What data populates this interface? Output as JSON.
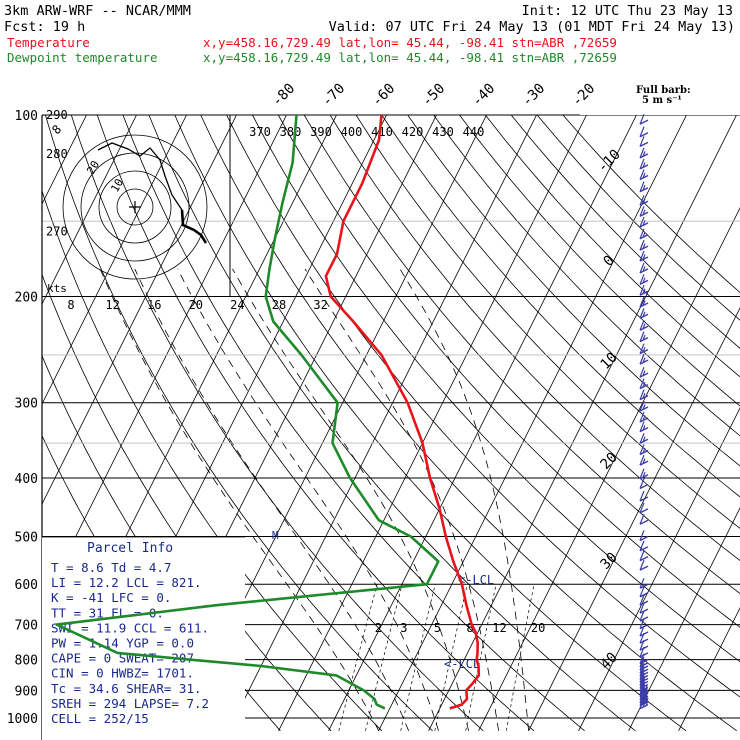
{
  "header": {
    "line1_left": "3km ARW-WRF -- NCAR/MMM",
    "line1_right": "Init: 12 UTC Thu 23 May 13",
    "line2_left": "Fcst:     19 h",
    "line2_right": "Valid: 07 UTC Fri 24 May 13 (01 MDT Fri 24 May 13)",
    "temp_label": "Temperature",
    "temp_info": "x,y=458.16,729.49   lat,lon= 45.44, -98.41   stn=ABR ,72659",
    "dew_label": "Dewpoint temperature",
    "dew_info": "x,y=458.16,729.49   lat,lon= 45.44, -98.41   stn=ABR ,72659",
    "barb_title": "Full barb:",
    "barb_unit": "5 m s⁻¹"
  },
  "colors": {
    "temperature": "#e8141a",
    "dewpoint": "#1f8a2a",
    "barbs": "#3c3ca8",
    "grid": "#000000"
  },
  "chart_data": {
    "type": "line",
    "y_axis": {
      "label": "",
      "scale": "log",
      "ticks": [
        100,
        200,
        300,
        400,
        500,
        600,
        700,
        800,
        900,
        1000
      ],
      "ylim": [
        1050,
        100
      ]
    },
    "isotherm_labels": [
      "-80",
      "-70",
      "-60",
      "-50",
      "-40",
      "-30",
      "-20",
      "-10",
      "0",
      "10",
      "20",
      "30",
      "40"
    ],
    "theta_e_labels": [
      "370",
      "380",
      "390",
      "400",
      "410",
      "420",
      "430",
      "440"
    ],
    "dry_adiabat_labels": [
      "290",
      "280",
      "270"
    ],
    "mixing_ratio_labels": [
      "2",
      "3",
      "5",
      "8",
      "12",
      "20"
    ],
    "hodograph": {
      "unit_label": "kts",
      "speed_labels": [
        "8",
        "12",
        "16",
        "20",
        "24",
        "28",
        "32"
      ],
      "ring_labels": [
        "8",
        "20",
        "10"
      ]
    },
    "series": [
      {
        "name": "Temperature",
        "points": [
          [
            964,
            12.0
          ],
          [
            950,
            14.0
          ],
          [
            930,
            14.5
          ],
          [
            900,
            13.5
          ],
          [
            880,
            14.0
          ],
          [
            850,
            14.5
          ],
          [
            820,
            13.5
          ],
          [
            800,
            12.5
          ],
          [
            780,
            12.0
          ],
          [
            750,
            11.0
          ],
          [
            720,
            9.5
          ],
          [
            700,
            8.0
          ],
          [
            650,
            5.0
          ],
          [
            600,
            2.0
          ],
          [
            550,
            -2.0
          ],
          [
            500,
            -6.0
          ],
          [
            450,
            -10.0
          ],
          [
            400,
            -15.0
          ],
          [
            350,
            -20.0
          ],
          [
            300,
            -27.0
          ],
          [
            250,
            -37.0
          ],
          [
            220,
            -46.0
          ],
          [
            200,
            -53.0
          ],
          [
            185,
            -56.0
          ],
          [
            170,
            -56.0
          ],
          [
            150,
            -58.0
          ],
          [
            130,
            -58.0
          ],
          [
            110,
            -59.0
          ],
          [
            100,
            -61.0
          ]
        ]
      },
      {
        "name": "Dewpoint temperature",
        "points": [
          [
            964,
            -1.0
          ],
          [
            950,
            -3.0
          ],
          [
            930,
            -4.0
          ],
          [
            900,
            -7.0
          ],
          [
            850,
            -14.0
          ],
          [
            820,
            -30.0
          ],
          [
            800,
            -45.0
          ],
          [
            780,
            -60.0
          ],
          [
            700,
            -75.0
          ],
          [
            650,
            -45.0
          ],
          [
            600,
            -5.0
          ],
          [
            550,
            -5.0
          ],
          [
            500,
            -13.0
          ],
          [
            470,
            -21.0
          ],
          [
            400,
            -31.0
          ],
          [
            350,
            -38.0
          ],
          [
            300,
            -41.0
          ],
          [
            250,
            -53.0
          ],
          [
            220,
            -62.0
          ],
          [
            200,
            -66.0
          ],
          [
            180,
            -68.0
          ],
          [
            160,
            -70.0
          ],
          [
            140,
            -72.0
          ],
          [
            120,
            -74.0
          ],
          [
            100,
            -78.0
          ]
        ]
      }
    ],
    "annotations": {
      "lcl_upper": "<-LCL",
      "lcl_lower": "<-LCL",
      "mark": "M"
    }
  },
  "parcel": {
    "title": "Parcel Info",
    "rows": [
      "T  =    8.6 Td =   4.7",
      "LI =   12.2 LCL =  821.",
      "K  =    -41 LFC =    0.",
      "TT =     31 EL  =    0.",
      "SWI =  11.9 CCL =  611.",
      "PW =   1.14 YGP =   0.0",
      "CAPE =    0 SWEAT=  207",
      "CIN =     0 HWBZ= 1701.",
      "Tc =   34.6 SHEAR=  31.",
      "SREH =  294 LAPSE=  7.2",
      "CELL = 252/15"
    ]
  },
  "wind_profile": {
    "barb_levels": [
      950,
      940,
      930,
      920,
      910,
      900,
      890,
      880,
      870,
      860,
      850,
      840,
      830,
      820,
      810,
      800,
      780,
      760,
      740,
      720,
      700,
      680,
      660,
      640,
      620,
      600,
      560,
      540,
      520,
      500,
      470,
      450,
      430,
      410,
      395,
      375,
      360,
      345,
      330,
      318,
      305,
      292,
      280,
      268,
      255,
      245,
      234,
      224,
      214,
      205,
      196,
      188,
      180,
      172,
      165,
      158,
      151,
      145,
      139,
      132,
      126,
      121,
      116,
      111,
      107,
      102
    ],
    "speeds_ms": [
      25,
      25,
      20,
      20,
      20,
      15,
      15,
      15,
      15,
      15,
      10,
      10,
      10,
      10,
      10,
      10,
      10,
      10,
      10,
      10,
      10,
      10,
      10,
      10,
      10,
      10,
      10,
      10,
      10,
      10,
      10,
      10,
      10,
      10,
      15,
      15,
      15,
      15,
      15,
      15,
      15,
      15,
      15,
      15,
      15,
      15,
      15,
      15,
      15,
      15,
      15,
      15,
      15,
      15,
      15,
      15,
      15,
      15,
      15,
      15,
      15,
      15,
      15,
      10,
      10,
      10
    ]
  }
}
